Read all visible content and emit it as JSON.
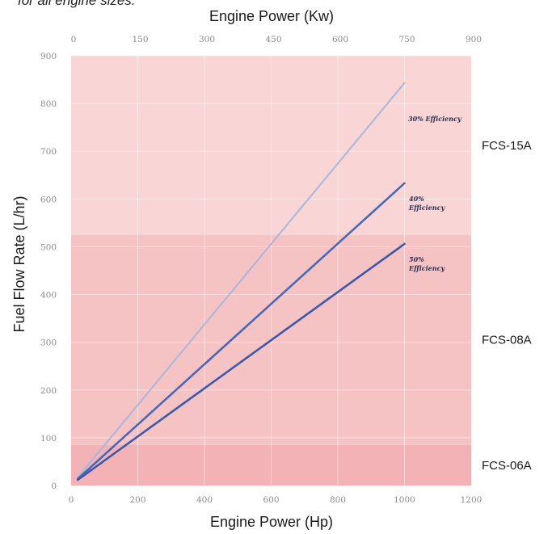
{
  "caption": "for all engine sizes.",
  "chart_data": {
    "type": "line",
    "title": "",
    "xlabel": "Engine Power (Hp)",
    "x2label": "Engine Power (Kw)",
    "ylabel": "Fuel Flow Rate (L/hr)",
    "xlim": [
      0,
      1200
    ],
    "x2lim": [
      0,
      900
    ],
    "ylim": [
      0,
      900
    ],
    "x_ticks": [
      "0",
      "200",
      "400",
      "600",
      "800",
      "1000",
      "1200"
    ],
    "x2_ticks": [
      "0",
      "150",
      "300",
      "450",
      "600",
      "750",
      "900"
    ],
    "y_ticks": [
      "0",
      "100",
      "200",
      "300",
      "400",
      "500",
      "600",
      "700",
      "800",
      "900"
    ],
    "grid": true,
    "bands": [
      {
        "name": "FCS-06A",
        "y_from": 0,
        "y_to": 85,
        "color": "#f3b3b6"
      },
      {
        "name": "FCS-08A",
        "y_from": 85,
        "y_to": 525,
        "color": "#f6c3c5"
      },
      {
        "name": "FCS-15A",
        "y_from": 525,
        "y_to": 900,
        "color": "#f9d5d6"
      }
    ],
    "series": [
      {
        "name": "30% Efficiency",
        "color": "#a9b6dc",
        "width": 2,
        "x": [
          20,
          1000
        ],
        "y": [
          17,
          843
        ]
      },
      {
        "name": "40% Efficiency",
        "color": "#4a68b5",
        "width": 2.6,
        "x": [
          20,
          1000
        ],
        "y": [
          14,
          633
        ]
      },
      {
        "name": "50% Efficiency",
        "color": "#3b59a8",
        "width": 2.6,
        "x": [
          20,
          1000
        ],
        "y": [
          12,
          506
        ]
      }
    ]
  }
}
